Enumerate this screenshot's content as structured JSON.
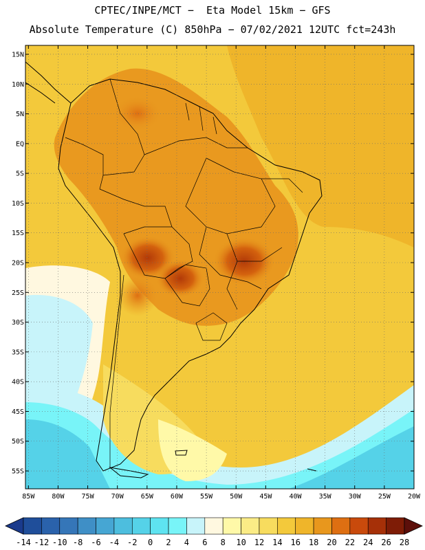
{
  "header": {
    "line1": "CPTEC/INPE/MCT −  Eta Model 15km − GFS",
    "line2": "Absolute Temperature (C) 850hPa − 07/02/2021 12UTC fct=243h"
  },
  "map": {
    "lat_labels": [
      "15N",
      "10N",
      "5N",
      "EQ",
      "5S",
      "10S",
      "15S",
      "20S",
      "25S",
      "30S",
      "35S",
      "40S",
      "45S",
      "50S",
      "55S"
    ],
    "lon_labels": [
      "85W",
      "80W",
      "75W",
      "70W",
      "65W",
      "60W",
      "55W",
      "50W",
      "45W",
      "40W",
      "35W",
      "30W",
      "25W",
      "20W"
    ],
    "lat_values": [
      15,
      10,
      5,
      0,
      -5,
      -10,
      -15,
      -20,
      -25,
      -30,
      -35,
      -40,
      -45,
      -50,
      -55
    ],
    "lon_values": [
      -85,
      -80,
      -75,
      -70,
      -65,
      -60,
      -55,
      -50,
      -45,
      -40,
      -35,
      -30,
      -25,
      -20
    ],
    "extent": {
      "lon_min": -85.5,
      "lon_max": -20,
      "lat_min": -58,
      "lat_max": 16.5
    }
  },
  "colorbar": {
    "levels": [
      "-14",
      "-12",
      "-10",
      "-8",
      "-6",
      "-4",
      "-2",
      "0",
      "2",
      "4",
      "6",
      "8",
      "10",
      "12",
      "14",
      "16",
      "18",
      "20",
      "22",
      "24",
      "26",
      "28"
    ],
    "colors": [
      "#1a3a8c",
      "#1f4e9a",
      "#2a62ab",
      "#3576b8",
      "#3f8fc6",
      "#46a6d3",
      "#4dbede",
      "#55d2e8",
      "#5ee3f0",
      "#78f4f8",
      "#c8f4fa",
      "#fff8e0",
      "#fff9a8",
      "#fbec86",
      "#f7dc5e",
      "#f3c93b",
      "#efb52a",
      "#e8971d",
      "#de6f12",
      "#c94a0c",
      "#a63008",
      "#7e1c06",
      "#5c0f0a"
    ]
  }
}
